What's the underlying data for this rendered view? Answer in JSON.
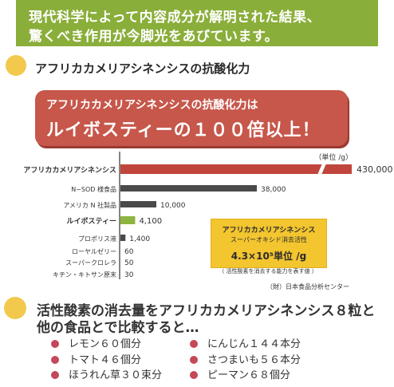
{
  "banner": {
    "line1": "現代科学によって内容成分が解明された結果、",
    "line2": "驚くべき作用が今脚光をあびています。",
    "color": "#8aae3a"
  },
  "section1": {
    "title": "アフリカカメリアシネンシスの抗酸化力"
  },
  "callout": {
    "line1": "アフリカカメリアシネンシスの抗酸化力は",
    "line2": "ルイボスティーの１００倍以上！",
    "color": "#c7574b"
  },
  "chart_data": {
    "type": "bar",
    "orientation": "horizontal",
    "unit_label": "（単位 /g）",
    "categories": [
      "アフリカカメリアシネンシス",
      "N−SOD 様食品",
      "アメリカ N 社製品",
      "ルイボスティー",
      "プロポリス液",
      "ローヤルゼリー",
      "スーパークロレラ",
      "キチン・キトサン原末"
    ],
    "values": [
      430000,
      38000,
      10000,
      4100,
      1400,
      60,
      50,
      30
    ],
    "value_labels": [
      "430,000",
      "38,000",
      "10,000",
      "4,100",
      "1,400",
      "60",
      "50",
      "30"
    ],
    "axis_break": true,
    "colors": {
      "highlight": "#c0453c",
      "rooibos": "#8db43e",
      "default": "#4a4a4a"
    }
  },
  "infobox": {
    "title": "アフリカカメリアシネンシス",
    "subtitle": "スーパーオキシド消去活性",
    "value": "4.3×10⁵単位 /g",
    "note": "（ 活性酸素を消去する能力を表す値 ）"
  },
  "source": "（財）日本食品分析センター",
  "comparison": {
    "line1": "活性酸素の消去量をアフリカカメリアシネンシス８粒と",
    "line2": "他の食品とで比較すると…",
    "items_left": [
      "レモン６０個分",
      "トマト４６個分",
      "ほうれん草３０束分"
    ],
    "items_right": [
      "にんじん１４４本分",
      "さつまいも５６本分",
      "ピーマン６８個分"
    ],
    "bullet_color": "#c4485a"
  }
}
